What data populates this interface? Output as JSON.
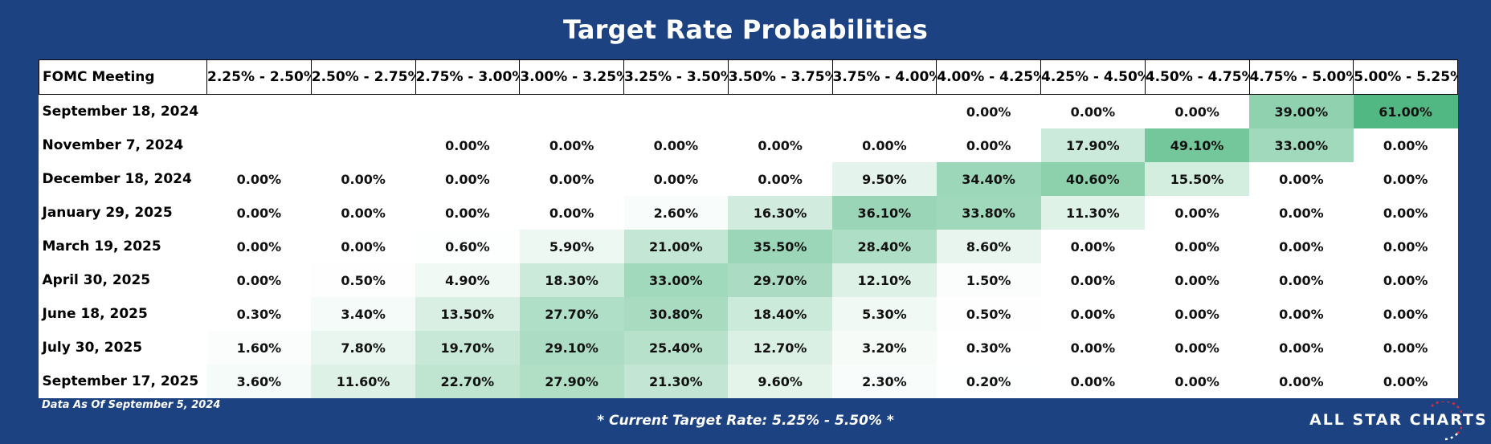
{
  "title": "Target Rate Probabilities",
  "as_of": "Data As Of September 5, 2024",
  "current_rate": "* Current Target Rate: 5.25% - 5.50% *",
  "logo_text": "ALL STAR CHARTS",
  "logo_icon": "star-arc-icon",
  "colors": {
    "background": "#1c4282",
    "heat_max": "#52b883",
    "heat_min": "#ffffff",
    "logo_accent": "#d0313c"
  },
  "chart_data": {
    "type": "heatmap",
    "row_header": "FOMC Meeting",
    "columns": [
      "2.25% - 2.50%",
      "2.50% - 2.75%",
      "2.75% - 3.00%",
      "3.00% - 3.25%",
      "3.25% - 3.50%",
      "3.50% - 3.75%",
      "3.75% - 4.00%",
      "4.00% - 4.25%",
      "4.25% - 4.50%",
      "4.50% - 4.75%",
      "4.75% - 5.00%",
      "5.00% - 5.25%"
    ],
    "rows": [
      {
        "meeting": "September 18, 2024",
        "values": [
          null,
          null,
          null,
          null,
          null,
          null,
          null,
          0.0,
          0.0,
          0.0,
          39.0,
          61.0
        ]
      },
      {
        "meeting": "November 7, 2024",
        "values": [
          null,
          null,
          0.0,
          0.0,
          0.0,
          0.0,
          0.0,
          0.0,
          17.9,
          49.1,
          33.0,
          0.0
        ]
      },
      {
        "meeting": "December 18, 2024",
        "values": [
          0.0,
          0.0,
          0.0,
          0.0,
          0.0,
          0.0,
          9.5,
          34.4,
          40.6,
          15.5,
          0.0,
          0.0
        ]
      },
      {
        "meeting": "January 29, 2025",
        "values": [
          0.0,
          0.0,
          0.0,
          0.0,
          2.6,
          16.3,
          36.1,
          33.8,
          11.3,
          0.0,
          0.0,
          0.0
        ]
      },
      {
        "meeting": "March 19, 2025",
        "values": [
          0.0,
          0.0,
          0.6,
          5.9,
          21.0,
          35.5,
          28.4,
          8.6,
          0.0,
          0.0,
          0.0,
          0.0
        ]
      },
      {
        "meeting": "April 30, 2025",
        "values": [
          0.0,
          0.5,
          4.9,
          18.3,
          33.0,
          29.7,
          12.1,
          1.5,
          0.0,
          0.0,
          0.0,
          0.0
        ]
      },
      {
        "meeting": "June 18, 2025",
        "values": [
          0.3,
          3.4,
          13.5,
          27.7,
          30.8,
          18.4,
          5.3,
          0.5,
          0.0,
          0.0,
          0.0,
          0.0
        ]
      },
      {
        "meeting": "July 30, 2025",
        "values": [
          1.6,
          7.8,
          19.7,
          29.1,
          25.4,
          12.7,
          3.2,
          0.3,
          0.0,
          0.0,
          0.0,
          0.0
        ]
      },
      {
        "meeting": "September 17, 2025",
        "values": [
          3.6,
          11.6,
          22.7,
          27.9,
          21.3,
          9.6,
          2.3,
          0.2,
          0.0,
          0.0,
          0.0,
          0.0
        ]
      }
    ]
  }
}
